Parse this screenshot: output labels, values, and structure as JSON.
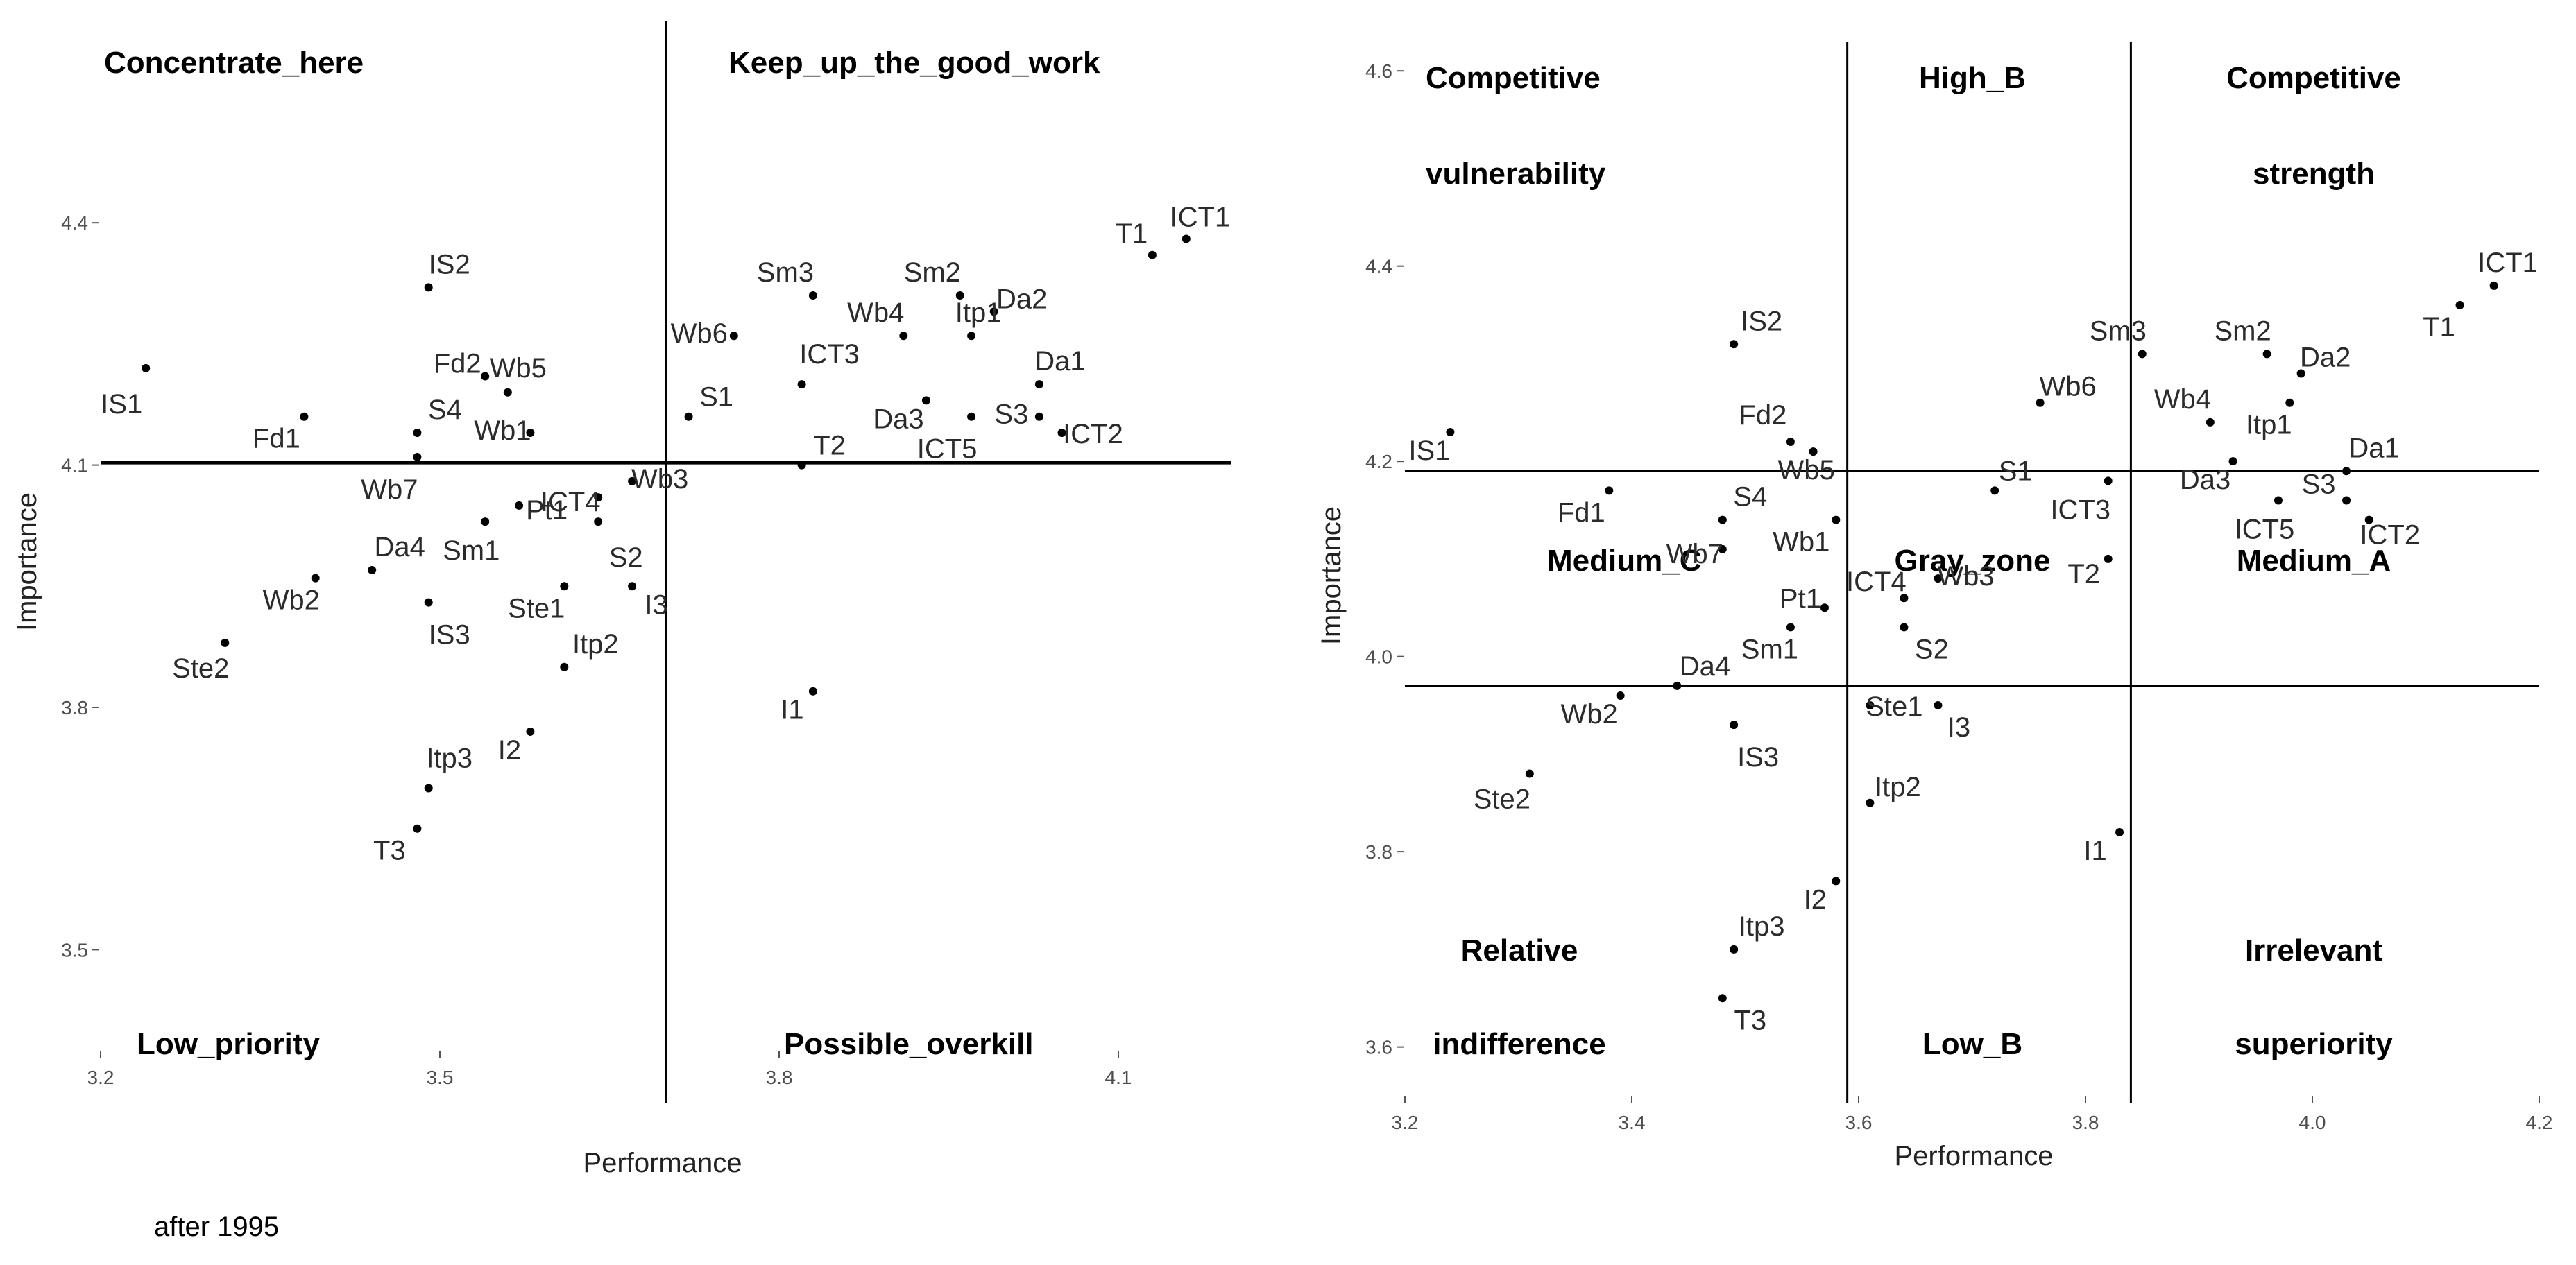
{
  "footnote": "after 1995",
  "chart_data": [
    {
      "type": "scatter",
      "title": "",
      "xlabel": "Performance",
      "ylabel": "Importance",
      "xlim": [
        3.2,
        4.2
      ],
      "ylim": [
        3.375,
        4.65
      ],
      "xticks": [
        {
          "value": 3.2,
          "label": "3.2"
        },
        {
          "value": 3.5,
          "label": "3.5"
        },
        {
          "value": 3.8,
          "label": "3.8"
        },
        {
          "value": 4.1,
          "label": "4.1"
        }
      ],
      "yticks": [
        {
          "value": 3.5,
          "label": "3.5"
        },
        {
          "value": 3.8,
          "label": "3.8"
        },
        {
          "value": 4.1,
          "label": "4.1"
        },
        {
          "value": 4.4,
          "label": "4.4"
        }
      ],
      "ref_lines": {
        "x": [
          3.7
        ],
        "y": [
          4.103
        ]
      },
      "quadrant_labels": [
        {
          "text": "Concentrate_here",
          "anchor": "top-left"
        },
        {
          "text": "Keep_up_the_good_work",
          "anchor": "top-right"
        },
        {
          "text": "Low_priority",
          "anchor": "bottom-left"
        },
        {
          "text": "Possible_overkill",
          "anchor": "bottom-right"
        }
      ],
      "points": [
        {
          "label": "ICT1",
          "x": 4.16,
          "y": 4.38
        },
        {
          "label": "T1",
          "x": 4.13,
          "y": 4.36
        },
        {
          "label": "IS2",
          "x": 3.49,
          "y": 4.32
        },
        {
          "label": "Sm3",
          "x": 3.83,
          "y": 4.31
        },
        {
          "label": "Sm2",
          "x": 3.96,
          "y": 4.31
        },
        {
          "label": "Da2",
          "x": 3.99,
          "y": 4.29
        },
        {
          "label": "Wb4",
          "x": 3.91,
          "y": 4.26
        },
        {
          "label": "Itp1",
          "x": 3.97,
          "y": 4.26
        },
        {
          "label": "Wb6",
          "x": 3.76,
          "y": 4.26
        },
        {
          "label": "IS1",
          "x": 3.24,
          "y": 4.22
        },
        {
          "label": "Fd2",
          "x": 3.54,
          "y": 4.21
        },
        {
          "label": "Wb5",
          "x": 3.56,
          "y": 4.19
        },
        {
          "label": "ICT3",
          "x": 3.82,
          "y": 4.2
        },
        {
          "label": "S1",
          "x": 3.72,
          "y": 4.16
        },
        {
          "label": "Da3",
          "x": 3.93,
          "y": 4.18
        },
        {
          "label": "Da1",
          "x": 4.03,
          "y": 4.2
        },
        {
          "label": "Fd1",
          "x": 3.38,
          "y": 4.16
        },
        {
          "label": "S4",
          "x": 3.48,
          "y": 4.14
        },
        {
          "label": "Wb1",
          "x": 3.58,
          "y": 4.14
        },
        {
          "label": "S3",
          "x": 4.03,
          "y": 4.16
        },
        {
          "label": "ICT5",
          "x": 3.97,
          "y": 4.16
        },
        {
          "label": "ICT2",
          "x": 4.05,
          "y": 4.14
        },
        {
          "label": "Wb7",
          "x": 3.48,
          "y": 4.11
        },
        {
          "label": "T2",
          "x": 3.82,
          "y": 4.1
        },
        {
          "label": "Wb3",
          "x": 3.67,
          "y": 4.08
        },
        {
          "label": "ICT4",
          "x": 3.64,
          "y": 4.06
        },
        {
          "label": "Pt1",
          "x": 3.57,
          "y": 4.05
        },
        {
          "label": "Sm1",
          "x": 3.54,
          "y": 4.03
        },
        {
          "label": "S2",
          "x": 3.64,
          "y": 4.03
        },
        {
          "label": "Da4",
          "x": 3.44,
          "y": 3.97
        },
        {
          "label": "Wb2",
          "x": 3.39,
          "y": 3.96
        },
        {
          "label": "Ste1",
          "x": 3.61,
          "y": 3.95
        },
        {
          "label": "I3",
          "x": 3.67,
          "y": 3.95
        },
        {
          "label": "IS3",
          "x": 3.49,
          "y": 3.93
        },
        {
          "label": "Ste2",
          "x": 3.31,
          "y": 3.88
        },
        {
          "label": "Itp2",
          "x": 3.61,
          "y": 3.85
        },
        {
          "label": "I1",
          "x": 3.83,
          "y": 3.82
        },
        {
          "label": "I2",
          "x": 3.58,
          "y": 3.77
        },
        {
          "label": "Itp3",
          "x": 3.49,
          "y": 3.7
        },
        {
          "label": "T3",
          "x": 3.48,
          "y": 3.65
        }
      ]
    },
    {
      "type": "scatter",
      "title": "",
      "xlabel": "Performance",
      "ylabel": "Importance",
      "xlim": [
        3.2,
        4.2
      ],
      "ylim": [
        3.55,
        4.63
      ],
      "xticks": [
        {
          "value": 3.2,
          "label": "3.2"
        },
        {
          "value": 3.4,
          "label": "3.4"
        },
        {
          "value": 3.6,
          "label": "3.6"
        },
        {
          "value": 3.8,
          "label": "3.8"
        },
        {
          "value": 4.0,
          "label": "4.0"
        },
        {
          "value": 4.2,
          "label": "4.2"
        }
      ],
      "yticks": [
        {
          "value": 3.6,
          "label": "3.6"
        },
        {
          "value": 3.8,
          "label": "3.8"
        },
        {
          "value": 4.0,
          "label": "4.0"
        },
        {
          "value": 4.2,
          "label": "4.2"
        },
        {
          "value": 4.4,
          "label": "4.4"
        },
        {
          "value": 4.6,
          "label": "4.6"
        }
      ],
      "ref_lines": {
        "x": [
          3.59,
          3.84
        ],
        "y": [
          4.19,
          3.97
        ]
      },
      "quadrant_labels": [
        {
          "text": "Competitive",
          "anchor": "top-left",
          "line": 1
        },
        {
          "text": "vulnerability",
          "anchor": "top-left",
          "line": 2
        },
        {
          "text": "High_B",
          "anchor": "top-center",
          "line": 1
        },
        {
          "text": "Competitive",
          "anchor": "top-right",
          "line": 1
        },
        {
          "text": "strength",
          "anchor": "top-right",
          "line": 2
        },
        {
          "text": "Medium_C",
          "anchor": "middle-left",
          "line": 1
        },
        {
          "text": "Gray_zone",
          "anchor": "middle-center",
          "line": 1
        },
        {
          "text": "Medium_A",
          "anchor": "middle-right",
          "line": 1
        },
        {
          "text": "Relative",
          "anchor": "bottom-left",
          "line": 1
        },
        {
          "text": "indifference",
          "anchor": "bottom-left",
          "line": 2
        },
        {
          "text": "Low_B",
          "anchor": "bottom-center",
          "line": 1
        },
        {
          "text": "Irrelevant",
          "anchor": "bottom-right",
          "line": 1
        },
        {
          "text": "superiority",
          "anchor": "bottom-right",
          "line": 2
        }
      ],
      "points": [
        {
          "label": "ICT1",
          "x": 4.16,
          "y": 4.38
        },
        {
          "label": "T1",
          "x": 4.13,
          "y": 4.36
        },
        {
          "label": "IS2",
          "x": 3.49,
          "y": 4.32
        },
        {
          "label": "Sm3",
          "x": 3.85,
          "y": 4.31
        },
        {
          "label": "Sm2",
          "x": 3.96,
          "y": 4.31
        },
        {
          "label": "Da2",
          "x": 3.99,
          "y": 4.29
        },
        {
          "label": "Wb6",
          "x": 3.76,
          "y": 4.26
        },
        {
          "label": "Wb4",
          "x": 3.91,
          "y": 4.24
        },
        {
          "label": "Itp1",
          "x": 3.98,
          "y": 4.26
        },
        {
          "label": "IS1",
          "x": 3.24,
          "y": 4.23
        },
        {
          "label": "Fd2",
          "x": 3.54,
          "y": 4.22
        },
        {
          "label": "Wb5",
          "x": 3.56,
          "y": 4.21
        },
        {
          "label": "Da3",
          "x": 3.93,
          "y": 4.2
        },
        {
          "label": "Da1",
          "x": 4.03,
          "y": 4.19
        },
        {
          "label": "ICT3",
          "x": 3.82,
          "y": 4.18
        },
        {
          "label": "S1",
          "x": 3.72,
          "y": 4.17
        },
        {
          "label": "Fd1",
          "x": 3.38,
          "y": 4.17
        },
        {
          "label": "ICT5",
          "x": 3.97,
          "y": 4.16
        },
        {
          "label": "S3",
          "x": 4.03,
          "y": 4.16
        },
        {
          "label": "S4",
          "x": 3.48,
          "y": 4.14
        },
        {
          "label": "Wb1",
          "x": 3.58,
          "y": 4.14
        },
        {
          "label": "ICT2",
          "x": 4.05,
          "y": 4.14
        },
        {
          "label": "Wb7",
          "x": 3.48,
          "y": 4.11
        },
        {
          "label": "T2",
          "x": 3.82,
          "y": 4.1
        },
        {
          "label": "Wb3",
          "x": 3.67,
          "y": 4.08
        },
        {
          "label": "ICT4",
          "x": 3.64,
          "y": 4.06
        },
        {
          "label": "Pt1",
          "x": 3.57,
          "y": 4.05
        },
        {
          "label": "Sm1",
          "x": 3.54,
          "y": 4.03
        },
        {
          "label": "S2",
          "x": 3.64,
          "y": 4.03
        },
        {
          "label": "Da4",
          "x": 3.44,
          "y": 3.97
        },
        {
          "label": "Wb2",
          "x": 3.39,
          "y": 3.96
        },
        {
          "label": "Ste1",
          "x": 3.61,
          "y": 3.95
        },
        {
          "label": "I3",
          "x": 3.67,
          "y": 3.95
        },
        {
          "label": "IS3",
          "x": 3.49,
          "y": 3.93
        },
        {
          "label": "Ste2",
          "x": 3.31,
          "y": 3.88
        },
        {
          "label": "Itp2",
          "x": 3.61,
          "y": 3.85
        },
        {
          "label": "I1",
          "x": 3.83,
          "y": 3.82
        },
        {
          "label": "I2",
          "x": 3.58,
          "y": 3.77
        },
        {
          "label": "Itp3",
          "x": 3.49,
          "y": 3.7
        },
        {
          "label": "T3",
          "x": 3.48,
          "y": 3.65
        }
      ]
    }
  ]
}
